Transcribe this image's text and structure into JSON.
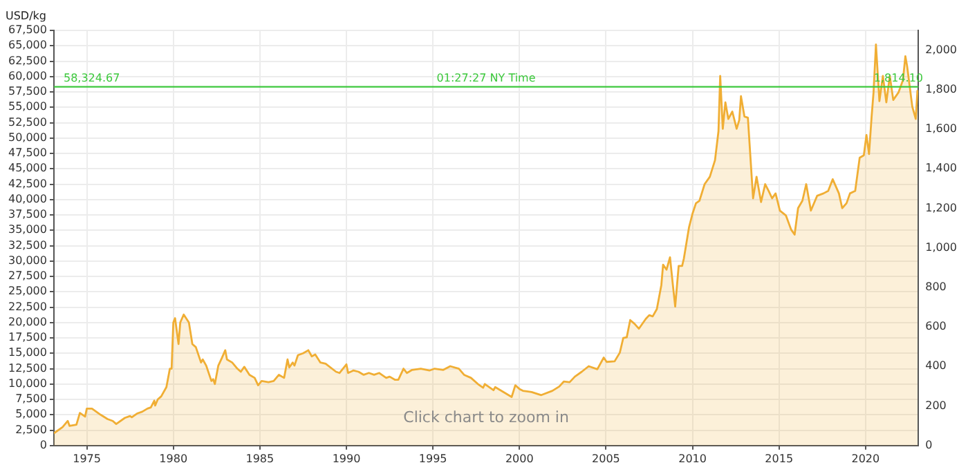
{
  "chart_data": {
    "type": "area",
    "ylabel": "USD/kg",
    "annotations": [
      "01:27:27 NY Time",
      "Click chart to zoom in",
      {
        "text": "1,814.10",
        "x": 2021.9,
        "y": 58324.67
      }
    ],
    "x": [
      1973.1,
      1973.6,
      1973.9,
      1974.0,
      1974.4,
      1974.6,
      1974.9,
      1975.0,
      1975.3,
      1975.8,
      1976.2,
      1976.5,
      1976.7,
      1977.2,
      1977.5,
      1977.6,
      1977.9,
      1978.2,
      1978.5,
      1978.7,
      1978.9,
      1978.95,
      1979.1,
      1979.3,
      1979.6,
      1979.8,
      1979.9,
      1980.0,
      1980.1,
      1980.3,
      1980.4,
      1980.6,
      1980.9,
      1981.1,
      1981.3,
      1981.6,
      1981.7,
      1981.9,
      1982.2,
      1982.3,
      1982.4,
      1982.6,
      1982.8,
      1983.0,
      1983.1,
      1983.4,
      1983.7,
      1983.9,
      1984.1,
      1984.4,
      1984.7,
      1984.9,
      1985.1,
      1985.5,
      1985.8,
      1986.1,
      1986.4,
      1986.6,
      1986.7,
      1986.9,
      1987.0,
      1987.2,
      1987.5,
      1987.8,
      1988.0,
      1988.2,
      1988.5,
      1988.8,
      1989.4,
      1989.6,
      1990.0,
      1990.1,
      1990.4,
      1990.7,
      1991.0,
      1991.3,
      1991.6,
      1991.9,
      1992.3,
      1992.5,
      1992.8,
      1993.0,
      1993.3,
      1993.5,
      1993.8,
      1994.3,
      1994.8,
      1995.1,
      1995.6,
      1996.0,
      1996.5,
      1996.8,
      1997.2,
      1997.6,
      1997.9,
      1998.0,
      1998.5,
      1998.6,
      1998.9,
      1999.55,
      1999.76,
      2000.0,
      2000.2,
      2000.7,
      2001.26,
      2001.9,
      2002.3,
      2002.56,
      2002.9,
      2003.2,
      2003.6,
      2004.0,
      2004.5,
      2004.87,
      2005.04,
      2005.5,
      2005.8,
      2006.0,
      2006.2,
      2006.4,
      2006.65,
      2006.9,
      2007.3,
      2007.5,
      2007.7,
      2007.94,
      2008.2,
      2008.3,
      2008.5,
      2008.7,
      2008.85,
      2009.0,
      2009.2,
      2009.4,
      2009.5,
      2009.8,
      2010.0,
      2010.2,
      2010.4,
      2010.7,
      2011.0,
      2011.3,
      2011.5,
      2011.6,
      2011.75,
      2011.9,
      2012.07,
      2012.3,
      2012.55,
      2012.7,
      2012.8,
      2013.0,
      2013.2,
      2013.5,
      2013.7,
      2013.96,
      2014.2,
      2014.4,
      2014.6,
      2014.8,
      2015.05,
      2015.4,
      2015.7,
      2015.9,
      2016.1,
      2016.35,
      2016.57,
      2016.84,
      2017.2,
      2017.57,
      2017.84,
      2018.1,
      2018.46,
      2018.65,
      2018.9,
      2019.1,
      2019.4,
      2019.66,
      2019.9,
      2020.05,
      2020.2,
      2020.35,
      2020.46,
      2020.6,
      2020.8,
      2021.0,
      2021.2,
      2021.4,
      2021.6,
      2021.9,
      2022.16,
      2022.3,
      2022.4,
      2022.7,
      2022.9,
      2023.0
    ],
    "series": [
      {
        "color": "#f0ae34",
        "values": [
          2000,
          3000,
          4000,
          3200,
          3400,
          5300,
          4700,
          6000,
          6000,
          5000,
          4300,
          4000,
          3500,
          4500,
          4800,
          4600,
          5200,
          5500,
          6000,
          6200,
          7300,
          6500,
          7500,
          8000,
          9500,
          12500,
          12500,
          20000,
          20700,
          16500,
          20000,
          21300,
          20000,
          16500,
          16000,
          13500,
          14000,
          13000,
          10500,
          10800,
          10000,
          13000,
          14200,
          15500,
          14000,
          13500,
          12500,
          12000,
          12800,
          11500,
          11000,
          9800,
          10500,
          10300,
          10500,
          11500,
          11000,
          14000,
          12700,
          13500,
          13000,
          14700,
          15000,
          15500,
          14500,
          14800,
          13500,
          13300,
          12000,
          11800,
          13200,
          11800,
          12200,
          12000,
          11500,
          11800,
          11500,
          11800,
          11000,
          11200,
          10700,
          10700,
          12500,
          11800,
          12300,
          12500,
          12200,
          12500,
          12300,
          12900,
          12500,
          11500,
          11000,
          10000,
          9400,
          10000,
          9000,
          9500,
          9000,
          7900,
          9800,
          9200,
          8900,
          8700,
          8200,
          8900,
          9600,
          10400,
          10300,
          11200,
          12000,
          12900,
          12400,
          14300,
          13600,
          13700,
          15100,
          17500,
          17600,
          20400,
          19800,
          19000,
          20600,
          21200,
          21000,
          22200,
          26100,
          29400,
          28600,
          30600,
          26500,
          22600,
          29200,
          29200,
          30400,
          35500,
          37700,
          39400,
          39800,
          42500,
          43700,
          46400,
          51100,
          60100,
          51500,
          55800,
          53100,
          54300,
          51500,
          52900,
          56800,
          53500,
          53300,
          40200,
          43700,
          39600,
          42500,
          41400,
          40200,
          41000,
          38200,
          37400,
          35100,
          34300,
          38600,
          39800,
          42500,
          38200,
          40600,
          41000,
          41400,
          43300,
          41000,
          38600,
          39400,
          41000,
          41400,
          46800,
          47200,
          50500,
          47400,
          53500,
          57400,
          65200,
          56000,
          60100,
          55800,
          60100,
          56200,
          57400,
          59400,
          63300,
          61700,
          55100,
          53100,
          57800
        ]
      }
    ],
    "xlim": [
      1973.1,
      2023.05
    ],
    "xticks": [
      1975,
      1980,
      1985,
      1990,
      1995,
      2000,
      2005,
      2010,
      2015,
      2020
    ],
    "ylim": [
      0,
      67500
    ],
    "yticks": [
      0,
      {
        "value": 2500,
        "label": "2,500"
      },
      {
        "value": 5000,
        "label": "5,000"
      },
      {
        "value": 7500,
        "label": "7,500"
      },
      {
        "value": 10000,
        "label": "10,000"
      },
      {
        "value": 12500,
        "label": "12,500"
      },
      {
        "value": 15000,
        "label": "15,000"
      },
      {
        "value": 17500,
        "label": "17,500"
      },
      {
        "value": 20000,
        "label": "20,000"
      },
      {
        "value": 22500,
        "label": "22,500"
      },
      {
        "value": 25000,
        "label": "25,000"
      },
      {
        "value": 27500,
        "label": "27,500"
      },
      {
        "value": 30000,
        "label": "30,000"
      },
      {
        "value": 32500,
        "label": "32,500"
      },
      {
        "value": 35000,
        "label": "35,000"
      },
      {
        "value": 37500,
        "label": "37,500"
      },
      {
        "value": 40000,
        "label": "40,000"
      },
      {
        "value": 42500,
        "label": "42,500"
      },
      {
        "value": 45000,
        "label": "45,000"
      },
      {
        "value": 47500,
        "label": "47,500"
      },
      {
        "value": 50000,
        "label": "50,000"
      },
      {
        "value": 52500,
        "label": "52,500"
      },
      {
        "value": 55000,
        "label": "55,000"
      },
      {
        "value": 57500,
        "label": "57,500"
      },
      {
        "value": 60000,
        "label": "60,000"
      },
      {
        "value": 62500,
        "label": "62,500"
      },
      {
        "value": 65000,
        "label": "65,000"
      },
      {
        "value": 67500,
        "label": "67,500"
      }
    ],
    "y2lim": [
      0,
      2099.5
    ],
    "y2ticks": [
      0,
      200,
      400,
      600,
      800,
      {
        "value": 1000,
        "label": "1,000"
      },
      {
        "value": 1200,
        "label": "1,200"
      },
      {
        "value": 1400,
        "label": "1,400"
      },
      {
        "value": 1600,
        "label": "1,600"
      },
      {
        "value": 1800,
        "label": "1,800"
      },
      {
        "value": 2000,
        "label": "2,000"
      }
    ],
    "ref_lines": [
      {
        "axis": "y",
        "value": 58324.67,
        "label": "58,324.67",
        "color": "#3cc83c"
      }
    ],
    "grid": true,
    "marker": "none",
    "line_style": "solid"
  }
}
